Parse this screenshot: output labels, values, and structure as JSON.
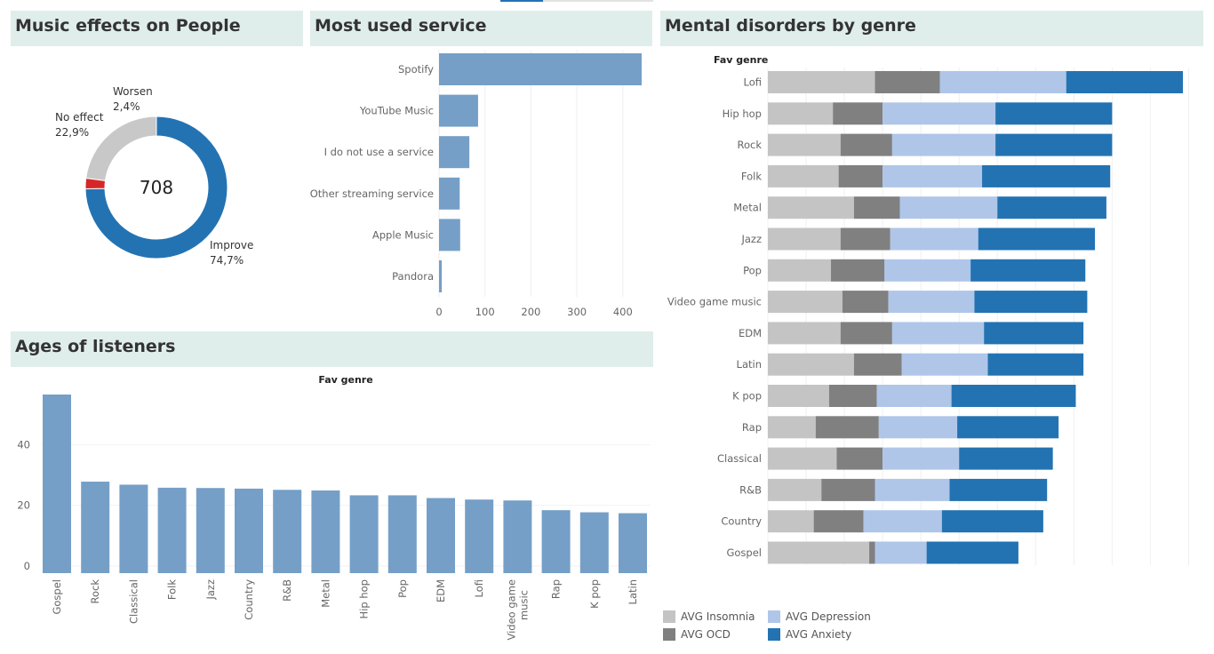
{
  "dashboard": {
    "accent_tab_color": "#2373b3",
    "panel_bg": "#e0eeeb"
  },
  "panels": {
    "effects": {
      "title": "Music effects on People"
    },
    "service": {
      "title": "Most used service"
    },
    "ages": {
      "title": "Ages of listeners"
    },
    "mental": {
      "title": "Mental disorders by genre"
    }
  },
  "chart_data": [
    {
      "id": "effects",
      "type": "pie",
      "title": "Music effects on People",
      "center_label": "708",
      "slices": [
        {
          "label": "Improve",
          "value_label": "74,7%",
          "value": 74.7,
          "color": "#2373b3"
        },
        {
          "label": "Worsen",
          "value_label": "2,4%",
          "value": 2.4,
          "color": "#d62728"
        },
        {
          "label": "No effect",
          "value_label": "22,9%",
          "value": 22.9,
          "color": "#c8c8c8"
        }
      ]
    },
    {
      "id": "service",
      "type": "bar",
      "orientation": "horizontal",
      "title": "Most used service",
      "categories": [
        "Spotify",
        "YouTube Music",
        "I do not use a service",
        "Other streaming service",
        "Apple Music",
        "Pandora"
      ],
      "values": [
        441,
        85,
        66,
        45,
        46,
        6
      ],
      "xticks": [
        0,
        100,
        200,
        300,
        400
      ],
      "xlim": [
        0,
        460
      ],
      "color": "#759fc7"
    },
    {
      "id": "ages",
      "type": "bar",
      "title": "Ages of listeners",
      "header": "Fav genre",
      "categories": [
        "Gospel",
        "Rock",
        "Classical",
        "Folk",
        "Jazz",
        "Country",
        "R&B",
        "Metal",
        "Hip hop",
        "Pop",
        "EDM",
        "Lofi",
        "Video game music",
        "Rap",
        "K pop",
        "Latin"
      ],
      "values": [
        56.5,
        27.8,
        26.8,
        25.8,
        25.7,
        25.5,
        25.1,
        24.9,
        23.3,
        23.3,
        22.4,
        21.9,
        21.6,
        18.4,
        17.7,
        17.4
      ],
      "yticks": [
        0,
        20,
        40
      ],
      "ylim": [
        -2,
        60
      ],
      "color": "#759fc7"
    },
    {
      "id": "mental",
      "type": "bar",
      "orientation": "horizontal",
      "stacked": true,
      "title": "Mental disorders by genre",
      "header": "Fav genre",
      "categories": [
        "Lofi",
        "Hip hop",
        "Rock",
        "Folk",
        "Metal",
        "Jazz",
        "Pop",
        "Video game music",
        "EDM",
        "Latin",
        "K pop",
        "Rap",
        "Classical",
        "R&B",
        "Country",
        "Gospel"
      ],
      "series": [
        {
          "name": "AVG Insomnia",
          "color": "#c4c4c4",
          "values": [
            5.6,
            3.4,
            3.8,
            3.7,
            4.5,
            3.8,
            3.3,
            3.9,
            3.8,
            4.5,
            3.2,
            2.5,
            3.6,
            2.8,
            2.4,
            5.3
          ]
        },
        {
          "name": "AVG OCD",
          "color": "#808080",
          "values": [
            3.4,
            2.6,
            2.7,
            2.3,
            2.4,
            2.6,
            2.8,
            2.4,
            2.7,
            2.5,
            2.5,
            3.3,
            2.4,
            2.8,
            2.6,
            0.3
          ]
        },
        {
          "name": "AVG Depression",
          "color": "#afc6e9",
          "values": [
            6.6,
            5.9,
            5.4,
            5.2,
            5.1,
            4.6,
            4.5,
            4.5,
            4.8,
            4.5,
            3.9,
            4.1,
            4.0,
            3.9,
            4.1,
            2.7
          ]
        },
        {
          "name": "AVG Anxiety",
          "color": "#2373b3",
          "values": [
            6.1,
            6.1,
            6.1,
            6.7,
            5.7,
            6.1,
            6.0,
            5.9,
            5.2,
            5.0,
            6.5,
            5.3,
            4.9,
            5.1,
            5.3,
            4.8
          ]
        }
      ],
      "xlim": [
        0,
        22
      ],
      "legend_position": "bottom-left"
    }
  ]
}
